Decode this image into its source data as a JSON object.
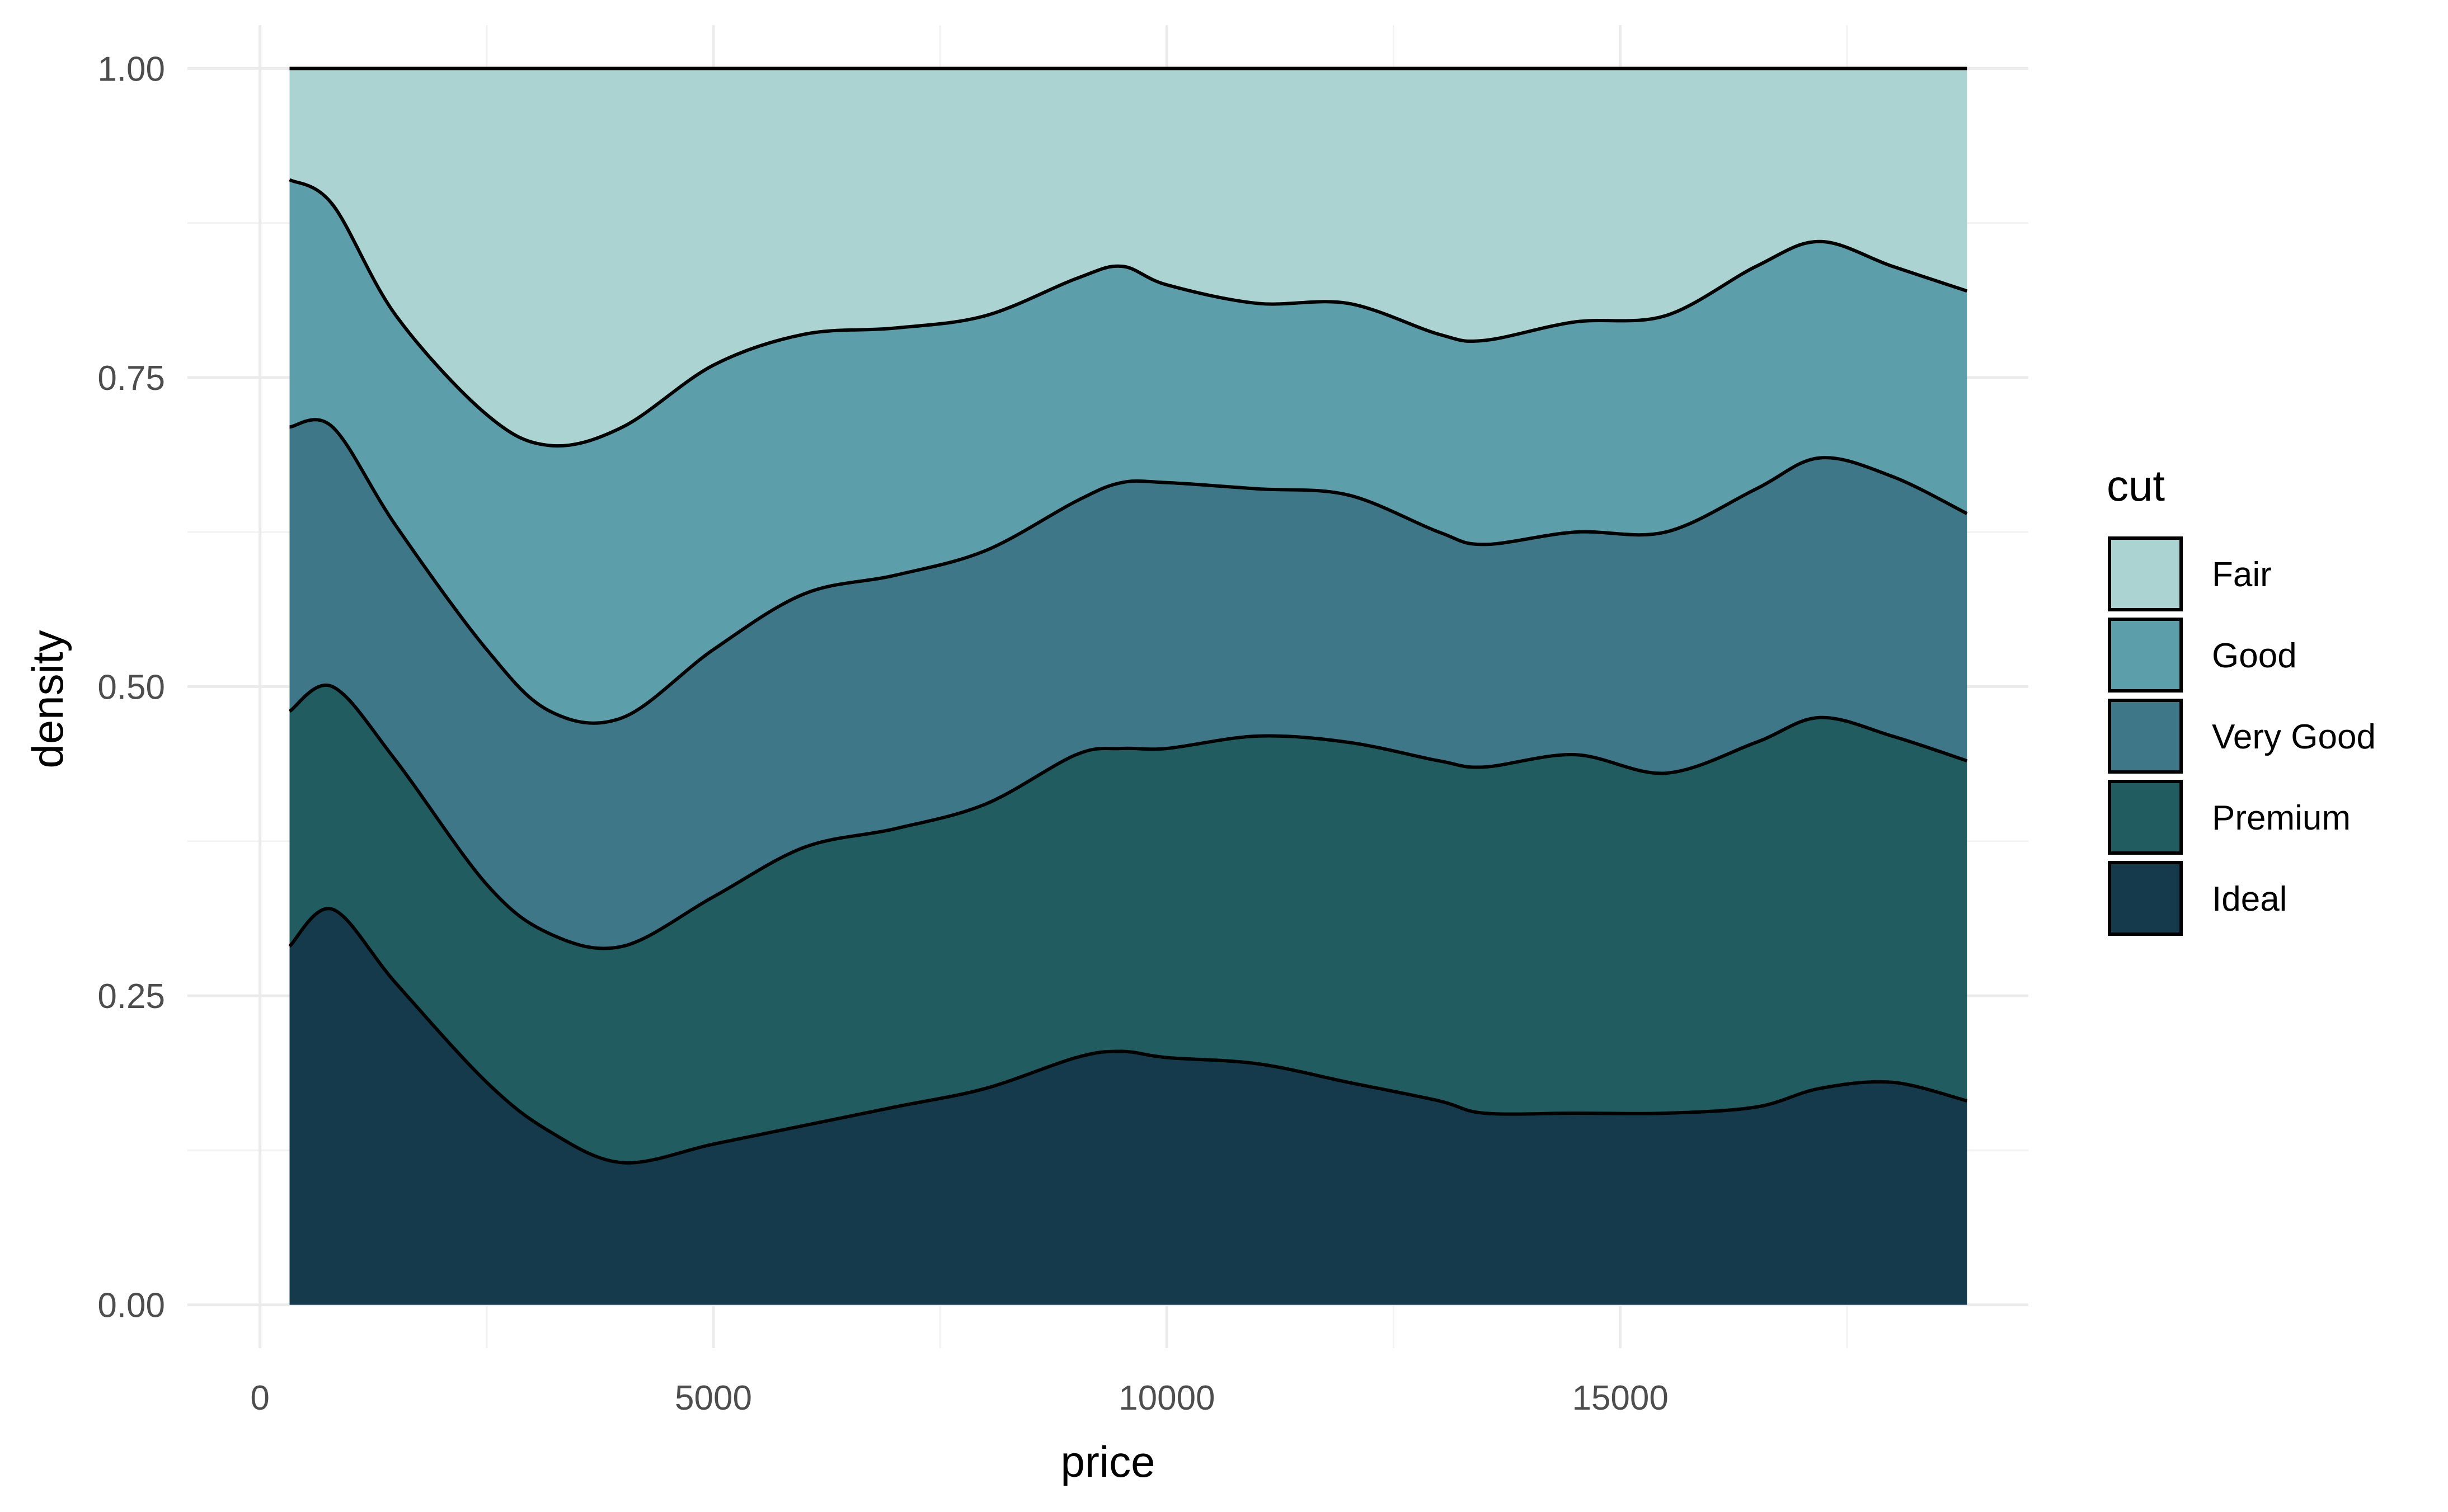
{
  "chart_data": {
    "type": "area",
    "variant": "stacked-density-fill",
    "xlabel": "price",
    "ylabel": "density",
    "xlim": [
      -800,
      19500
    ],
    "ylim": [
      -0.035,
      1.035
    ],
    "x_ticks": [
      0,
      5000,
      10000,
      15000
    ],
    "x_tick_labels": [
      "0",
      "5000",
      "10000",
      "15000"
    ],
    "y_ticks": [
      0,
      0.25,
      0.5,
      0.75,
      1
    ],
    "y_tick_labels": [
      "0.00",
      "0.25",
      "0.50",
      "0.75",
      "1.00"
    ],
    "grid": true,
    "legend": {
      "title": "cut",
      "position": "right",
      "entries": [
        "Fair",
        "Good",
        "Very Good",
        "Premium",
        "Ideal"
      ]
    },
    "series_colors": {
      "Fair": "#abd3d2",
      "Good": "#5c9eaa",
      "Very Good": "#3e7888",
      "Premium": "#205c60",
      "Ideal": "#143a4b"
    },
    "x": [
      326,
      800,
      1500,
      2500,
      3200,
      4000,
      5000,
      6000,
      7000,
      8000,
      9000,
      9500,
      10000,
      11000,
      12000,
      13000,
      13500,
      14500,
      15500,
      16500,
      17200,
      18000,
      18823
    ],
    "boundaries": [
      {
        "above": "Ideal",
        "values": [
          0.29,
          0.32,
          0.26,
          0.18,
          0.14,
          0.115,
          0.13,
          0.145,
          0.16,
          0.175,
          0.2,
          0.205,
          0.2,
          0.195,
          0.18,
          0.165,
          0.155,
          0.155,
          0.155,
          0.16,
          0.175,
          0.18,
          0.165
        ]
      },
      {
        "above": "Premium",
        "values": [
          0.48,
          0.5,
          0.44,
          0.34,
          0.3,
          0.29,
          0.33,
          0.37,
          0.385,
          0.405,
          0.445,
          0.45,
          0.45,
          0.46,
          0.455,
          0.44,
          0.435,
          0.445,
          0.43,
          0.455,
          0.475,
          0.46,
          0.44
        ]
      },
      {
        "above": "Very Good",
        "values": [
          0.71,
          0.71,
          0.63,
          0.53,
          0.48,
          0.475,
          0.53,
          0.575,
          0.59,
          0.61,
          0.65,
          0.665,
          0.665,
          0.66,
          0.655,
          0.625,
          0.615,
          0.625,
          0.625,
          0.66,
          0.685,
          0.67,
          0.64
        ]
      },
      {
        "above": "Good",
        "values": [
          0.91,
          0.89,
          0.8,
          0.72,
          0.695,
          0.71,
          0.76,
          0.785,
          0.79,
          0.8,
          0.83,
          0.84,
          0.825,
          0.81,
          0.81,
          0.785,
          0.78,
          0.795,
          0.8,
          0.84,
          0.86,
          0.84,
          0.82
        ]
      },
      {
        "above": "Fair",
        "values": [
          1,
          1,
          1,
          1,
          1,
          1,
          1,
          1,
          1,
          1,
          1,
          1,
          1,
          1,
          1,
          1,
          1,
          1,
          1,
          1,
          1,
          1,
          1
        ]
      }
    ]
  }
}
